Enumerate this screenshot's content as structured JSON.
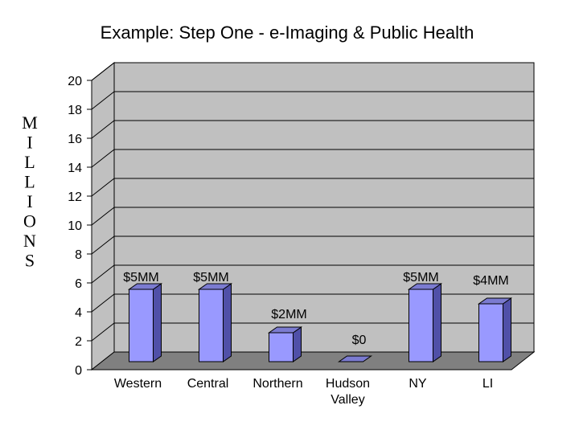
{
  "chart_data": {
    "type": "bar",
    "title": "Example: Step One - e-Imaging & Public Health",
    "ylabel": "MILLIONS",
    "ylim": [
      0,
      20
    ],
    "yticks": [
      0,
      2,
      4,
      6,
      8,
      10,
      12,
      14,
      16,
      18,
      20
    ],
    "grid": true,
    "categories": [
      "Western",
      "Central",
      "Northern",
      "Hudson\nValley",
      "NY",
      "LI"
    ],
    "values": [
      5,
      5,
      2,
      0,
      5,
      4
    ],
    "data_labels": [
      "$5MM",
      "$5MM",
      "$2MM",
      "$0",
      "$5MM",
      "$4MM"
    ],
    "colors": {
      "bar_front": "#9999ff",
      "bar_side": "#5050a8",
      "bar_top": "#7b7bd0",
      "wall": "#c0c0c0",
      "floor": "#808080"
    }
  }
}
